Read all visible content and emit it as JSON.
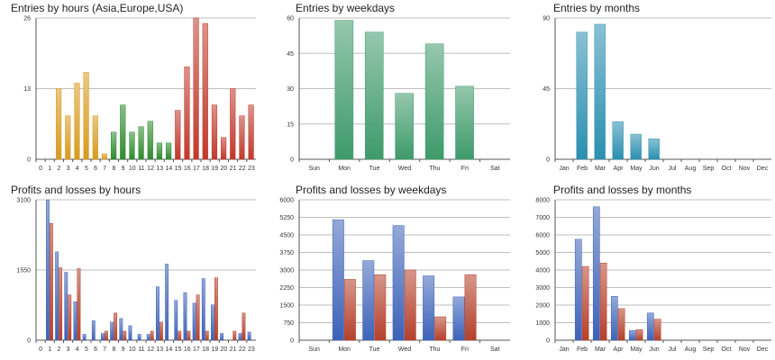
{
  "colors": {
    "orange": "#d89a1e",
    "green": "#2e8a2e",
    "red": "#c0392b",
    "teal": "#3e9a6a",
    "cyan": "#2a8fb0",
    "blue": "#3d62b8",
    "brownred": "#b5402a",
    "grid": "#bfbfbf",
    "axis": "#555555"
  },
  "chart_data": [
    {
      "type": "bar",
      "title": "Entries by hours (Asia,Europe,USA)",
      "categories": [
        "0",
        "1",
        "2",
        "3",
        "4",
        "5",
        "6",
        "7",
        "8",
        "9",
        "10",
        "11",
        "12",
        "13",
        "14",
        "15",
        "16",
        "17",
        "18",
        "19",
        "20",
        "21",
        "22",
        "23"
      ],
      "series": [
        {
          "values": [
            0,
            0,
            13,
            8,
            14,
            16,
            8,
            1,
            5,
            10,
            5,
            6,
            7,
            3,
            3,
            9,
            17,
            26,
            25,
            10,
            4,
            13,
            8,
            10
          ]
        }
      ],
      "bar_colors": [
        "orange",
        "orange",
        "orange",
        "orange",
        "orange",
        "orange",
        "orange",
        "orange",
        "green",
        "green",
        "green",
        "green",
        "green",
        "green",
        "green",
        "red",
        "red",
        "red",
        "red",
        "red",
        "red",
        "red",
        "red",
        "red"
      ],
      "yticks": [
        "0",
        "13",
        "26"
      ],
      "ylim": [
        0,
        26
      ],
      "grid": true
    },
    {
      "type": "bar",
      "title": "Entries by weekdays",
      "categories": [
        "Sun",
        "Mon",
        "Tue",
        "Wed",
        "Thu",
        "Fri",
        "Sat"
      ],
      "series": [
        {
          "values": [
            0,
            59,
            54,
            28,
            49,
            31,
            0
          ]
        }
      ],
      "bar_color": "teal",
      "yticks": [
        "0",
        "15",
        "30",
        "45",
        "60"
      ],
      "ylim": [
        0,
        60
      ],
      "grid": true
    },
    {
      "type": "bar",
      "title": "Entries by months",
      "categories": [
        "Jan",
        "Feb",
        "Mar",
        "Apr",
        "May",
        "Jun",
        "Jul",
        "Aug",
        "Sep",
        "Oct",
        "Nov",
        "Dec"
      ],
      "series": [
        {
          "values": [
            0,
            81,
            86,
            24,
            16,
            13,
            0,
            0,
            0,
            0,
            0,
            0
          ]
        }
      ],
      "bar_color": "cyan",
      "yticks": [
        "0",
        "45",
        "90"
      ],
      "ylim": [
        0,
        90
      ],
      "grid": true
    },
    {
      "type": "bar",
      "title": "Profits and losses by hours",
      "categories": [
        "0",
        "1",
        "2",
        "3",
        "4",
        "5",
        "6",
        "7",
        "8",
        "9",
        "10",
        "11",
        "12",
        "13",
        "14",
        "15",
        "16",
        "17",
        "18",
        "19",
        "20",
        "21",
        "22",
        "23"
      ],
      "series": [
        {
          "values": [
            0,
            3100,
            1950,
            1500,
            850,
            130,
            430,
            150,
            400,
            480,
            320,
            130,
            130,
            1180,
            1680,
            880,
            1050,
            820,
            1360,
            780,
            150,
            0,
            150,
            180
          ]
        },
        {
          "values": [
            0,
            2580,
            1600,
            1000,
            1580,
            0,
            0,
            200,
            600,
            200,
            0,
            0,
            200,
            400,
            0,
            200,
            200,
            1000,
            200,
            1380,
            0,
            200,
            600,
            0
          ]
        }
      ],
      "series_colors": [
        "blue",
        "brownred"
      ],
      "yticks": [
        "0",
        "1550",
        "3100"
      ],
      "ylim": [
        0,
        3100
      ],
      "grid": true
    },
    {
      "type": "bar",
      "title": "Profits and losses by weekdays",
      "categories": [
        "Sun",
        "Mon",
        "Tue",
        "Wed",
        "Thu",
        "Fri",
        "Sat"
      ],
      "series": [
        {
          "values": [
            0,
            5150,
            3400,
            4900,
            2750,
            1850,
            0
          ]
        },
        {
          "values": [
            0,
            2600,
            2800,
            3000,
            1000,
            2800,
            0
          ]
        }
      ],
      "series_colors": [
        "blue",
        "brownred"
      ],
      "yticks": [
        "0",
        "750",
        "1500",
        "2250",
        "3000",
        "3750",
        "4500",
        "5250",
        "6000"
      ],
      "ylim": [
        0,
        6000
      ],
      "grid": true
    },
    {
      "type": "bar",
      "title": "Profits and losses by months",
      "categories": [
        "Jan",
        "Feb",
        "Mar",
        "Apr",
        "May",
        "Jun",
        "Jul",
        "Aug",
        "Sep",
        "Oct",
        "Nov",
        "Dec"
      ],
      "series": [
        {
          "values": [
            0,
            5750,
            7600,
            2500,
            550,
            1550,
            0,
            0,
            0,
            0,
            0,
            0
          ]
        },
        {
          "values": [
            0,
            4200,
            4400,
            1800,
            600,
            1200,
            0,
            0,
            0,
            0,
            0,
            0
          ]
        }
      ],
      "series_colors": [
        "blue",
        "brownred"
      ],
      "yticks": [
        "0",
        "1000",
        "2000",
        "3000",
        "4000",
        "5000",
        "6000",
        "7000",
        "8000"
      ],
      "ylim": [
        0,
        8000
      ],
      "grid": true
    }
  ]
}
